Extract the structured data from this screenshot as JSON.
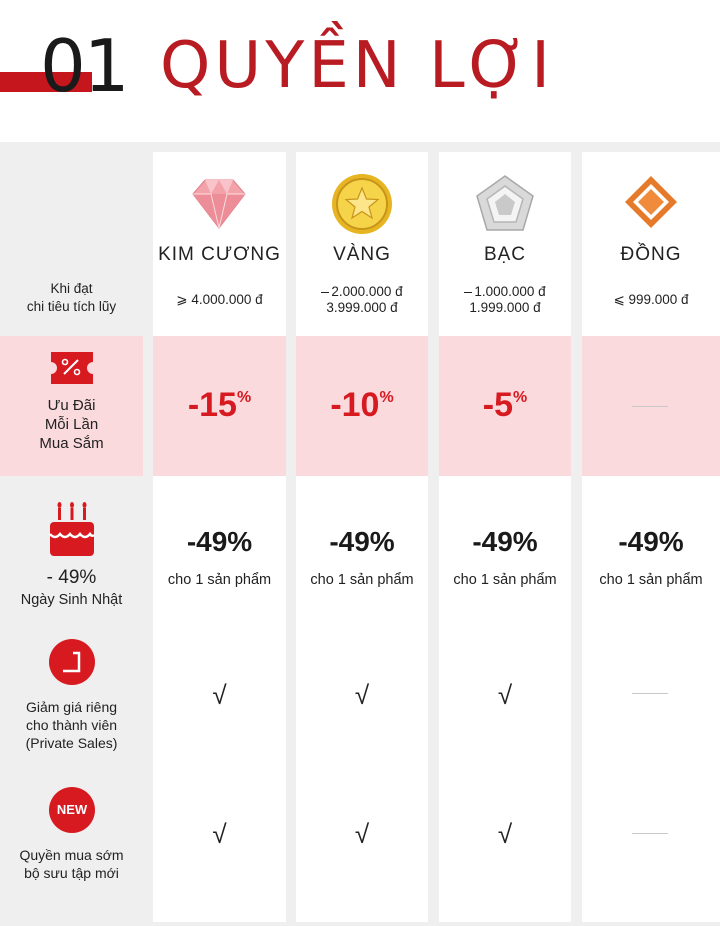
{
  "header": {
    "number": "01",
    "title": "QUYỀN LỢI"
  },
  "label_column": {
    "threshold_label": [
      "Khi đạt",
      "chi tiêu tích lũy"
    ],
    "discount_label": [
      "Ưu Đãi",
      "Mỗi Lần",
      "Mua Sắm"
    ],
    "birthday_label": [
      "- 49%",
      "Ngày Sinh Nhật"
    ],
    "private_sales_label": [
      "Giảm giá riêng",
      "cho thành viên",
      "(Private Sales)"
    ],
    "new_collection_label": [
      "Quyền mua sớm",
      "bộ sưu tập mới"
    ],
    "new_badge": "NEW"
  },
  "tiers": [
    {
      "name": "KIM CƯƠNG",
      "range": [
        "⩾ 4.000.000 đ"
      ],
      "discount": "-15",
      "discount_unit": "%",
      "birthday": "-49%",
      "birthday_sub": "cho 1 sản phẩm",
      "private_sales": "√",
      "new_collection": "√"
    },
    {
      "name": "VÀNG",
      "range": [
        "2.000.000 đ",
        "3.999.000 đ"
      ],
      "discount": "-10",
      "discount_unit": "%",
      "birthday": "-49%",
      "birthday_sub": "cho 1 sản phẩm",
      "private_sales": "√",
      "new_collection": "√"
    },
    {
      "name": "BẠC",
      "range": [
        "1.000.000 đ",
        "1.999.000 đ"
      ],
      "discount": "-5",
      "discount_unit": "%",
      "birthday": "-49%",
      "birthday_sub": "cho 1 sản phẩm",
      "private_sales": "√",
      "new_collection": "√"
    },
    {
      "name": "ĐỒNG",
      "range": [
        "⩽ 999.000 đ"
      ],
      "discount": "",
      "discount_unit": "",
      "birthday": "-49%",
      "birthday_sub": "cho 1 sản phẩm",
      "private_sales": "",
      "new_collection": ""
    }
  ],
  "colors": {
    "brand_red": "#c5161d",
    "pink": "#fadadd",
    "panel_gray": "#efefef"
  },
  "icons": [
    "diamond-icon",
    "gold-star-medal-icon",
    "silver-pentagon-icon",
    "bronze-diamond-icon",
    "coupon-icon",
    "birthday-cake-icon",
    "private-sales-icon",
    "new-badge-icon"
  ]
}
